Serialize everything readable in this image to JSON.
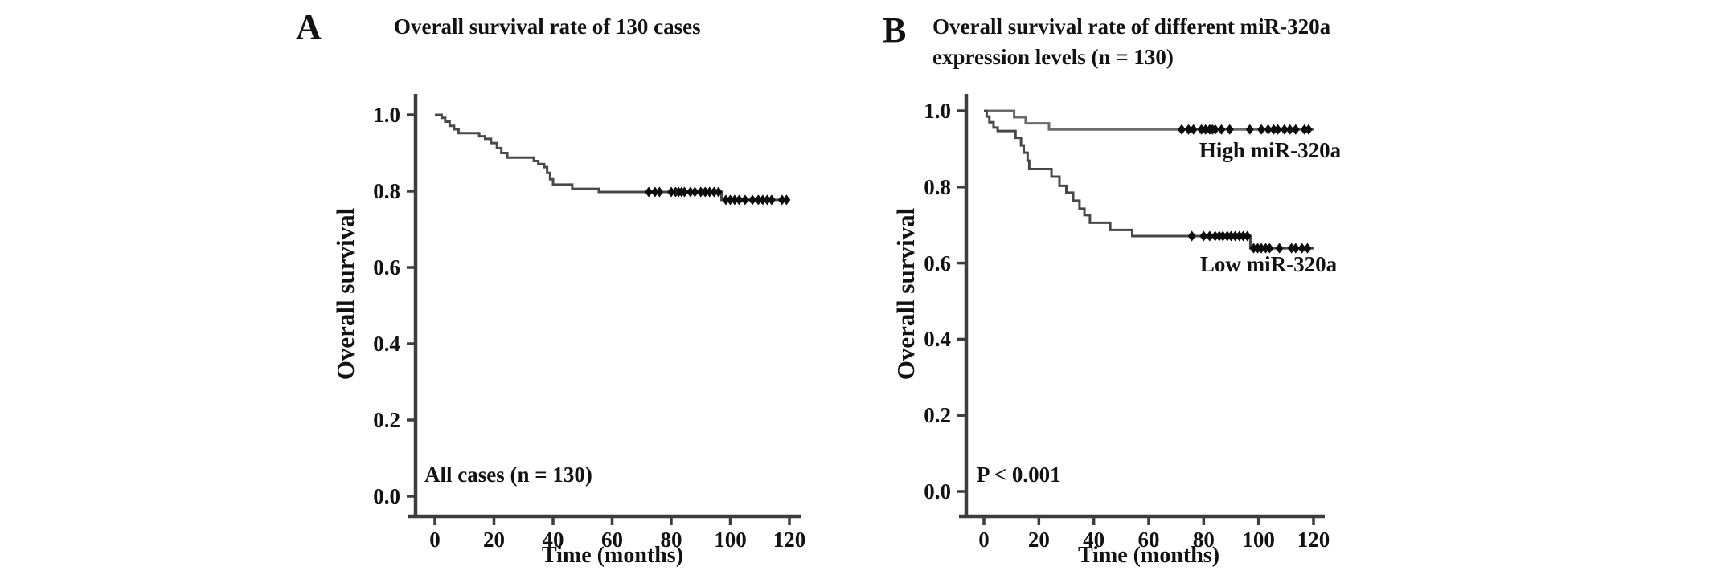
{
  "figure": {
    "background_color": "#ffffff",
    "text_color": "#121212",
    "axis_color": "#3d3d3d",
    "censor_color": "#0d0d0d",
    "panels": [
      {
        "panel_label": "A",
        "title": "Overall survival rate of 130 cases",
        "xlabel": "Time (months)",
        "ylabel": "Overall survival",
        "annotation": "All cases (n = 130)"
      },
      {
        "panel_label": "B",
        "title": "Overall survival rate of different miR-320a",
        "title_line2": "expression levels (n = 130)",
        "xlabel": "Time (months)",
        "ylabel": "Overall survival",
        "annotation": "P < 0.001"
      }
    ]
  },
  "chart_data": [
    {
      "id": "A",
      "type": "line",
      "subtype": "kaplan-meier-step",
      "title": "Overall survival rate of 130 cases",
      "xlabel": "Time (months)",
      "ylabel": "Overall survival",
      "annotation": "All cases (n = 130)",
      "xlim": [
        0,
        120
      ],
      "ylim": [
        0.0,
        1.0
      ],
      "x_ticks": [
        0,
        20,
        40,
        60,
        80,
        100,
        120
      ],
      "y_tick_values": [
        1.0,
        0.8,
        0.6,
        0.4,
        0.2,
        0.0
      ],
      "y_tick_labels": [
        "1.0",
        "0.8",
        "0.6",
        "0.4",
        "0.2",
        "0.0"
      ],
      "grid": false,
      "legend_position": "none",
      "series": [
        {
          "name": "All cases (n = 130)",
          "color": "#4a4a4a",
          "steps": [
            [
              0,
              1.0
            ],
            [
              2.3,
              0.992
            ],
            [
              3.5,
              0.982
            ],
            [
              5,
              0.971
            ],
            [
              6.5,
              0.962
            ],
            [
              8,
              0.952
            ],
            [
              15,
              0.944
            ],
            [
              17,
              0.937
            ],
            [
              19,
              0.926
            ],
            [
              21,
              0.913
            ],
            [
              22.5,
              0.9
            ],
            [
              24.5,
              0.888
            ],
            [
              33.5,
              0.879
            ],
            [
              35,
              0.871
            ],
            [
              37,
              0.863
            ],
            [
              38,
              0.848
            ],
            [
              39,
              0.831
            ],
            [
              40,
              0.817
            ],
            [
              46.5,
              0.806
            ],
            [
              55.5,
              0.798
            ],
            [
              97,
              0.777
            ],
            [
              120,
              0.777
            ]
          ],
          "censors": [
            [
              72.4,
              0.798
            ],
            [
              74.5,
              0.798
            ],
            [
              76,
              0.798
            ],
            [
              80,
              0.798
            ],
            [
              81.5,
              0.798
            ],
            [
              82.5,
              0.798
            ],
            [
              83.5,
              0.798
            ],
            [
              84.5,
              0.798
            ],
            [
              86.5,
              0.798
            ],
            [
              88,
              0.798
            ],
            [
              90,
              0.798
            ],
            [
              91.5,
              0.798
            ],
            [
              93,
              0.798
            ],
            [
              94.5,
              0.798
            ],
            [
              96,
              0.798
            ],
            [
              98.5,
              0.777
            ],
            [
              100,
              0.777
            ],
            [
              101.5,
              0.777
            ],
            [
              103,
              0.777
            ],
            [
              105,
              0.777
            ],
            [
              107.5,
              0.777
            ],
            [
              109.5,
              0.777
            ],
            [
              111,
              0.777
            ],
            [
              112.5,
              0.777
            ],
            [
              114,
              0.777
            ],
            [
              117.5,
              0.777
            ],
            [
              119,
              0.777
            ]
          ]
        }
      ]
    },
    {
      "id": "B",
      "type": "line",
      "subtype": "kaplan-meier-step",
      "title": "Overall survival rate of different miR-320a expression levels (n = 130)",
      "xlabel": "Time (months)",
      "ylabel": "Overall survival",
      "annotation": "P < 0.001",
      "xlim": [
        0,
        120
      ],
      "ylim": [
        0.0,
        1.0
      ],
      "x_ticks": [
        0,
        20,
        40,
        60,
        80,
        100,
        120
      ],
      "y_tick_values": [
        1.0,
        0.8,
        0.6,
        0.4,
        0.2,
        0.0
      ],
      "y_tick_labels": [
        "1.0",
        "0.8",
        "0.6",
        "0.4",
        "0.2",
        "0.0"
      ],
      "grid": false,
      "legend_position": "inline-labels",
      "series": [
        {
          "name": "High miR-320a",
          "color": "#6a6a6a",
          "steps": [
            [
              0,
              1.0
            ],
            [
              11,
              0.983
            ],
            [
              15.2,
              0.967
            ],
            [
              23.7,
              0.951
            ],
            [
              120,
              0.951
            ]
          ],
          "censors": [
            [
              72,
              0.951
            ],
            [
              74.5,
              0.951
            ],
            [
              76.3,
              0.951
            ],
            [
              79.2,
              0.951
            ],
            [
              80.7,
              0.951
            ],
            [
              82.2,
              0.951
            ],
            [
              83.2,
              0.951
            ],
            [
              84.2,
              0.951
            ],
            [
              86.5,
              0.951
            ],
            [
              89.5,
              0.951
            ],
            [
              96.8,
              0.951
            ],
            [
              101,
              0.951
            ],
            [
              103.5,
              0.951
            ],
            [
              105.5,
              0.951
            ],
            [
              107,
              0.951
            ],
            [
              109.4,
              0.951
            ],
            [
              111.4,
              0.951
            ],
            [
              113.5,
              0.951
            ],
            [
              116.7,
              0.951
            ],
            [
              118.2,
              0.951
            ]
          ]
        },
        {
          "name": "Low miR-320a",
          "color": "#474747",
          "steps": [
            [
              0,
              1.0
            ],
            [
              1,
              0.985
            ],
            [
              2,
              0.97
            ],
            [
              3.5,
              0.956
            ],
            [
              5,
              0.947
            ],
            [
              11.5,
              0.929
            ],
            [
              13.5,
              0.909
            ],
            [
              14.5,
              0.89
            ],
            [
              15.9,
              0.869
            ],
            [
              16.5,
              0.847
            ],
            [
              24.6,
              0.827
            ],
            [
              27.5,
              0.803
            ],
            [
              30,
              0.785
            ],
            [
              32.5,
              0.764
            ],
            [
              34.8,
              0.743
            ],
            [
              36.6,
              0.726
            ],
            [
              38.6,
              0.706
            ],
            [
              46,
              0.687
            ],
            [
              54,
              0.671
            ],
            [
              97,
              0.639
            ],
            [
              120,
              0.639
            ]
          ],
          "censors": [
            [
              75.7,
              0.671
            ],
            [
              80,
              0.671
            ],
            [
              82.2,
              0.671
            ],
            [
              84.2,
              0.671
            ],
            [
              85.7,
              0.671
            ],
            [
              87,
              0.671
            ],
            [
              88.6,
              0.671
            ],
            [
              90,
              0.671
            ],
            [
              91.5,
              0.671
            ],
            [
              93,
              0.671
            ],
            [
              94.4,
              0.671
            ],
            [
              95.9,
              0.671
            ],
            [
              98.2,
              0.639
            ],
            [
              99.7,
              0.639
            ],
            [
              101,
              0.639
            ],
            [
              102.6,
              0.639
            ],
            [
              104,
              0.639
            ],
            [
              107.6,
              0.639
            ],
            [
              112,
              0.639
            ],
            [
              113.5,
              0.639
            ],
            [
              115.8,
              0.639
            ],
            [
              117.8,
              0.639
            ]
          ]
        }
      ]
    }
  ]
}
